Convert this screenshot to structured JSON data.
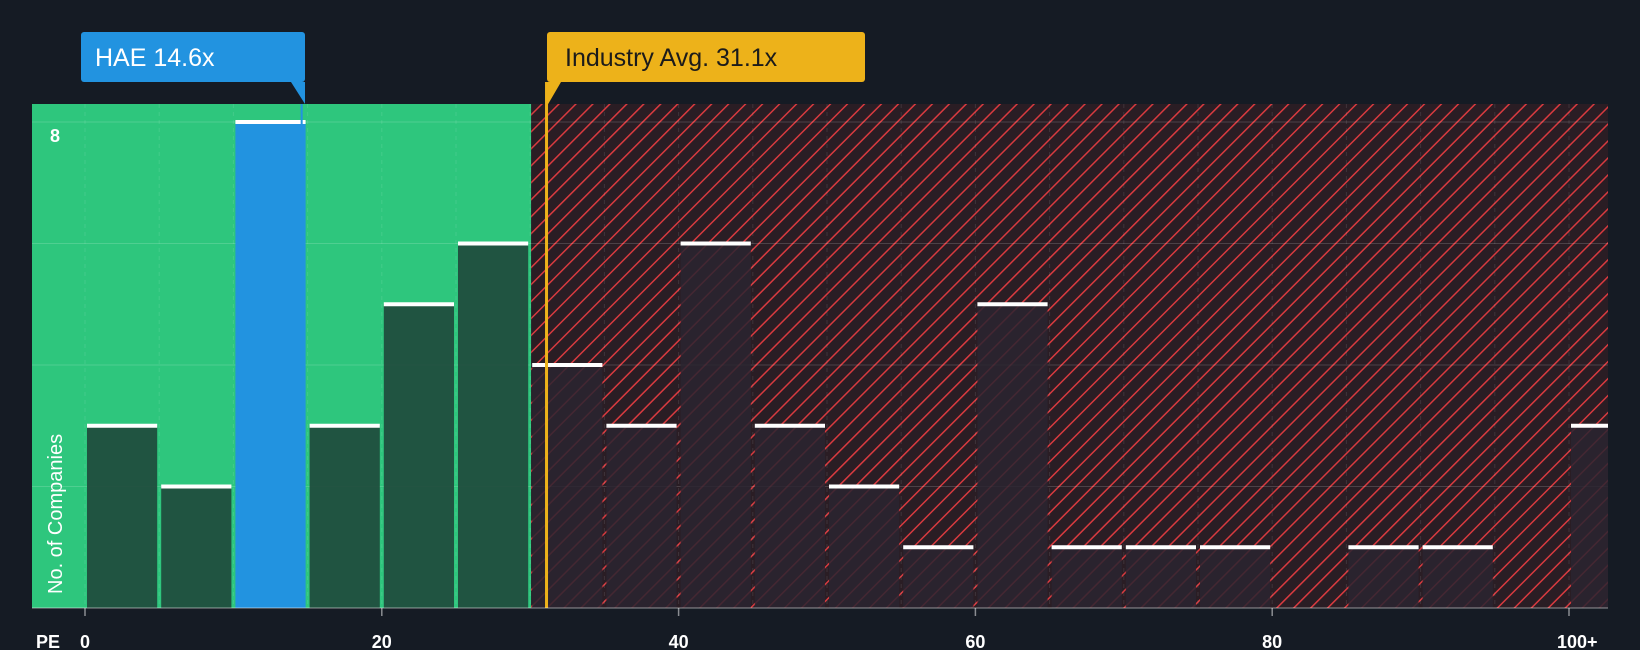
{
  "chart_data": {
    "type": "bar",
    "title": "",
    "xlabel": "PE",
    "ylabel": "No. of Companies",
    "bin_width": 5,
    "xlim": [
      0,
      100
    ],
    "ylim": [
      0,
      8
    ],
    "x_ticks": [
      {
        "value": 0,
        "label": "0"
      },
      {
        "value": 20,
        "label": "20"
      },
      {
        "value": 40,
        "label": "40"
      },
      {
        "value": 60,
        "label": "60"
      },
      {
        "value": 80,
        "label": "80"
      },
      {
        "value": 100,
        "label": "100+"
      }
    ],
    "y_ticks_labeled": [
      {
        "value": 8,
        "label": "8"
      }
    ],
    "y_gridlines": [
      2,
      4,
      6,
      8
    ],
    "bins": [
      {
        "start": 0,
        "value": 3
      },
      {
        "start": 5,
        "value": 2
      },
      {
        "start": 10,
        "value": 8,
        "highlight": true
      },
      {
        "start": 15,
        "value": 3
      },
      {
        "start": 20,
        "value": 5
      },
      {
        "start": 25,
        "value": 6
      },
      {
        "start": 30,
        "value": 4
      },
      {
        "start": 35,
        "value": 3
      },
      {
        "start": 40,
        "value": 6
      },
      {
        "start": 45,
        "value": 3
      },
      {
        "start": 50,
        "value": 2
      },
      {
        "start": 55,
        "value": 1
      },
      {
        "start": 60,
        "value": 5
      },
      {
        "start": 65,
        "value": 1
      },
      {
        "start": 70,
        "value": 1
      },
      {
        "start": 75,
        "value": 1
      },
      {
        "start": 80,
        "value": 0
      },
      {
        "start": 85,
        "value": 1
      },
      {
        "start": 90,
        "value": 1
      },
      {
        "start": 95,
        "value": 0
      },
      {
        "start": 100,
        "value": 3
      }
    ],
    "company": {
      "ticker": "HAE",
      "value": 14.6,
      "label": "HAE 14.6x"
    },
    "industry_average": {
      "value": 31.1,
      "label": "Industry Avg. 31.1x"
    },
    "fair_region_end": 30
  },
  "colors": {
    "background": "#151b24",
    "green_region": "#2ec67d",
    "bar_in_green": "#1f4a3c",
    "bar_in_red": "#2a2430",
    "highlight_bar": "#2293e0",
    "red_stripe": "#d83a3f",
    "company_callout": "#2293e0",
    "industry_callout": "#edb21a",
    "industry_line": "#edb21a",
    "bar_cap": "#ffffff",
    "text": "#ffffff",
    "callout_text_dark": "#1b1b1b"
  }
}
